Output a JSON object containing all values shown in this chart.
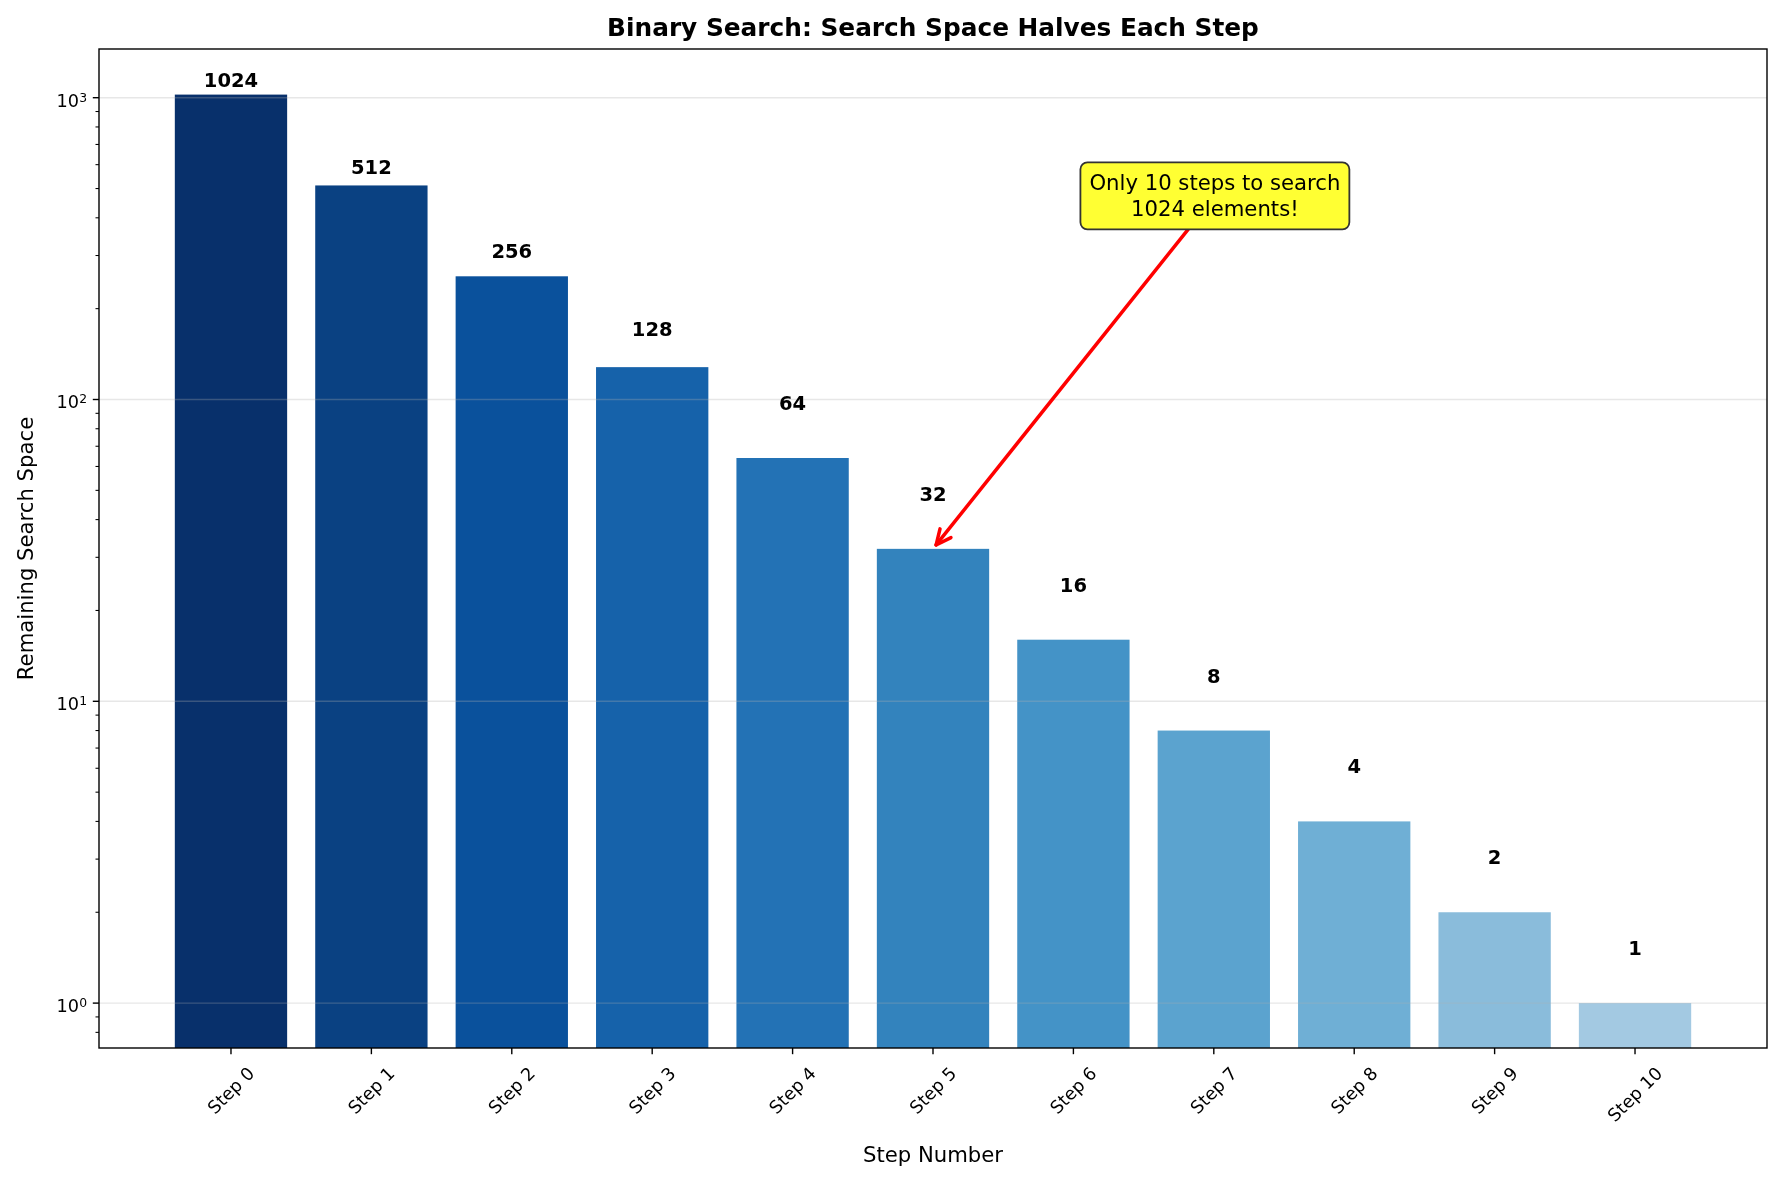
{
  "chart_data": {
    "type": "bar",
    "title": "Binary Search: Search Space Halves Each Step",
    "xlabel": "Step Number",
    "ylabel": "Remaining Search Space",
    "categories": [
      "Step 0",
      "Step 1",
      "Step 2",
      "Step 3",
      "Step 4",
      "Step 5",
      "Step 6",
      "Step 7",
      "Step 8",
      "Step 9",
      "Step 10"
    ],
    "values": [
      1024,
      512,
      256,
      128,
      64,
      32,
      16,
      8,
      4,
      2,
      1
    ],
    "colors": [
      "#08306b",
      "#0a4182",
      "#0a519c",
      "#1662aa",
      "#2372b5",
      "#3383bd",
      "#4493c7",
      "#5ba3cf",
      "#6fafd5",
      "#8abcdb",
      "#a3c9e2"
    ],
    "log": true,
    "ylim": [
      0.71,
      1450
    ],
    "yticks": [
      {
        "value": 0.8,
        "label": null
      },
      {
        "value": 0.9,
        "label": null
      },
      {
        "value": 1,
        "label": "10$^{0}$"
      },
      {
        "value": 2,
        "label": null
      },
      {
        "value": 3,
        "label": null
      },
      {
        "value": 4,
        "label": null
      },
      {
        "value": 5,
        "label": null
      },
      {
        "value": 6,
        "label": null
      },
      {
        "value": 7,
        "label": null
      },
      {
        "value": 8,
        "label": null
      },
      {
        "value": 9,
        "label": null
      },
      {
        "value": 10,
        "label": "10$^{1}$"
      },
      {
        "value": 20,
        "label": null
      },
      {
        "value": 30,
        "label": null
      },
      {
        "value": 40,
        "label": null
      },
      {
        "value": 50,
        "label": null
      },
      {
        "value": 60,
        "label": null
      },
      {
        "value": 70,
        "label": null
      },
      {
        "value": 80,
        "label": null
      },
      {
        "value": 90,
        "label": null
      },
      {
        "value": 100,
        "label": "10$^{2}$"
      },
      {
        "value": 200,
        "label": null
      },
      {
        "value": 300,
        "label": null
      },
      {
        "value": 400,
        "label": null
      },
      {
        "value": 500,
        "label": null
      },
      {
        "value": 600,
        "label": null
      },
      {
        "value": 700,
        "label": null
      },
      {
        "value": 800,
        "label": null
      },
      {
        "value": 900,
        "label": null
      },
      {
        "value": 1000,
        "label": "10$^{3}$"
      }
    ],
    "grid": "y",
    "data_labels": true,
    "annotations": [
      {
        "text": "Only 10 steps to search\n1024 elements!",
        "x": "Step 5",
        "y": 32
      }
    ]
  }
}
